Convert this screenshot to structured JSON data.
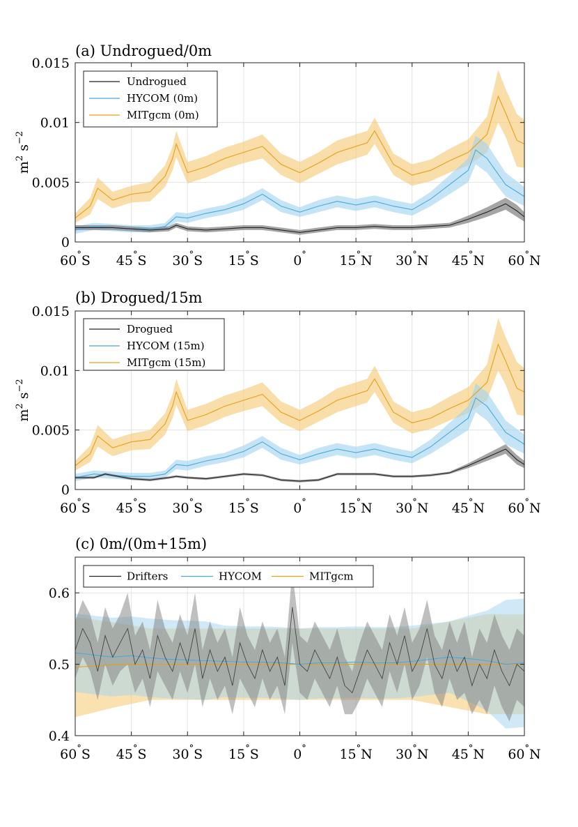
{
  "colors": {
    "drifter": "#222222",
    "hycom": "#4aa8db",
    "mitgcm": "#e69f18",
    "drifter_band": "#7f7f7f",
    "hycom_band": "#9fd3f2",
    "mitgcm_band": "#f5c870"
  },
  "chart_data": [
    {
      "type": "line",
      "panel": "a",
      "title": "(a) Undrogued/0m",
      "xlabel": "",
      "ylabel_base": "m",
      "ylabel_sup1": "2",
      "ylabel_s": " s",
      "ylabel_sup2": "−2",
      "xlim": [
        -60,
        60
      ],
      "ylim": [
        0,
        0.015
      ],
      "yticks": [
        0,
        0.005,
        0.01,
        0.015
      ],
      "ytick_labels": [
        "0",
        "0.005",
        "0.01",
        "0.015"
      ],
      "grid": true,
      "legend_position": "top-left",
      "legend_layout": "vertical",
      "series": [
        {
          "name": "Undrogued",
          "key": "drifter",
          "x": [
            -60,
            -55,
            -50,
            -45,
            -40,
            -35,
            -33,
            -30,
            -25,
            -20,
            -15,
            -10,
            -5,
            0,
            5,
            10,
            15,
            20,
            25,
            30,
            35,
            40,
            45,
            50,
            55,
            58,
            60
          ],
          "values": [
            0.0012,
            0.0012,
            0.0012,
            0.0011,
            0.001,
            0.0011,
            0.0014,
            0.0011,
            0.001,
            0.0011,
            0.0012,
            0.0012,
            0.001,
            0.0008,
            0.001,
            0.0012,
            0.0012,
            0.0013,
            0.0012,
            0.0012,
            0.0013,
            0.0014,
            0.0019,
            0.0025,
            0.0032,
            0.0026,
            0.0021
          ],
          "band": [
            0.0002,
            0.0002,
            0.0002,
            0.0002,
            0.0002,
            0.0002,
            0.0002,
            0.0002,
            0.0002,
            0.0002,
            0.0002,
            0.0002,
            0.0002,
            0.0002,
            0.0002,
            0.0002,
            0.0002,
            0.0002,
            0.0002,
            0.0002,
            0.0002,
            0.0002,
            0.0003,
            0.0004,
            0.0005,
            0.0005,
            0.0004
          ]
        },
        {
          "name": "HYCOM (0m)",
          "key": "hycom",
          "x": [
            -60,
            -55,
            -50,
            -45,
            -40,
            -36,
            -33,
            -30,
            -25,
            -20,
            -15,
            -10,
            -5,
            0,
            5,
            10,
            15,
            20,
            25,
            30,
            35,
            40,
            45,
            47,
            50,
            55,
            60
          ],
          "values": [
            0.001,
            0.0013,
            0.0012,
            0.0011,
            0.0011,
            0.0013,
            0.0021,
            0.002,
            0.0024,
            0.0027,
            0.0032,
            0.004,
            0.003,
            0.0025,
            0.003,
            0.0034,
            0.0031,
            0.0034,
            0.003,
            0.0027,
            0.0036,
            0.0048,
            0.006,
            0.0077,
            0.007,
            0.0048,
            0.0038
          ],
          "band": [
            0.0003,
            0.0003,
            0.0003,
            0.0003,
            0.0003,
            0.0003,
            0.0004,
            0.0004,
            0.0004,
            0.0004,
            0.0005,
            0.0005,
            0.0005,
            0.0004,
            0.0005,
            0.0005,
            0.0005,
            0.0005,
            0.0005,
            0.0005,
            0.0006,
            0.0008,
            0.001,
            0.0012,
            0.0012,
            0.001,
            0.0008
          ]
        },
        {
          "name": "MITgcm (0m)",
          "key": "mitgcm",
          "x": [
            -60,
            -56,
            -54,
            -50,
            -45,
            -40,
            -36,
            -34,
            -33,
            -30,
            -25,
            -20,
            -15,
            -10,
            -5,
            0,
            5,
            10,
            15,
            18,
            20,
            25,
            30,
            35,
            40,
            45,
            50,
            53,
            55,
            58,
            60
          ],
          "values": [
            0.002,
            0.003,
            0.0045,
            0.0035,
            0.004,
            0.0042,
            0.0055,
            0.007,
            0.0082,
            0.0058,
            0.0063,
            0.007,
            0.0075,
            0.008,
            0.0065,
            0.0058,
            0.0066,
            0.0075,
            0.008,
            0.0083,
            0.0093,
            0.0065,
            0.0056,
            0.006,
            0.0068,
            0.0075,
            0.009,
            0.0122,
            0.0108,
            0.0085,
            0.0082
          ],
          "band": [
            0.0004,
            0.0007,
            0.0009,
            0.0007,
            0.0007,
            0.0008,
            0.0009,
            0.001,
            0.0011,
            0.0009,
            0.0009,
            0.0009,
            0.0009,
            0.001,
            0.0009,
            0.0009,
            0.0009,
            0.001,
            0.001,
            0.001,
            0.0011,
            0.0009,
            0.0009,
            0.0009,
            0.001,
            0.0011,
            0.0015,
            0.0022,
            0.002,
            0.0022,
            0.002
          ]
        }
      ]
    },
    {
      "type": "line",
      "panel": "b",
      "title": "(b) Drogued/15m",
      "xlabel": "",
      "ylabel_base": "m",
      "ylabel_sup1": "2",
      "ylabel_s": " s",
      "ylabel_sup2": "−2",
      "xlim": [
        -60,
        60
      ],
      "ylim": [
        0,
        0.015
      ],
      "yticks": [
        0,
        0.005,
        0.01,
        0.015
      ],
      "ytick_labels": [
        "0",
        "0.005",
        "0.01",
        "0.015"
      ],
      "grid": true,
      "legend_position": "top-left",
      "legend_layout": "vertical",
      "series": [
        {
          "name": "Drogued",
          "key": "drifter",
          "x": [
            -60,
            -55,
            -52,
            -45,
            -40,
            -35,
            -33,
            -30,
            -25,
            -20,
            -15,
            -10,
            -5,
            0,
            5,
            10,
            15,
            20,
            25,
            30,
            35,
            40,
            45,
            50,
            55,
            58,
            60
          ],
          "values": [
            0.001,
            0.001,
            0.0013,
            0.0009,
            0.0008,
            0.001,
            0.0011,
            0.001,
            0.0009,
            0.0011,
            0.0013,
            0.0012,
            0.0008,
            0.0007,
            0.0008,
            0.0013,
            0.0013,
            0.0013,
            0.0011,
            0.0011,
            0.0012,
            0.0014,
            0.002,
            0.0027,
            0.0034,
            0.0025,
            0.0021
          ],
          "band": [
            0.0001,
            0.0001,
            0.0001,
            0.0001,
            0.0001,
            0.0001,
            0.0001,
            0.0001,
            0.0001,
            0.0001,
            0.0001,
            0.0001,
            0.0001,
            0.0001,
            0.0001,
            0.0001,
            0.0001,
            0.0001,
            0.0001,
            0.0001,
            0.0001,
            0.0001,
            0.0002,
            0.0003,
            0.0004,
            0.0004,
            0.0003
          ]
        },
        {
          "name": "HYCOM (15m)",
          "key": "hycom",
          "x": [
            -60,
            -55,
            -50,
            -45,
            -40,
            -36,
            -33,
            -30,
            -25,
            -20,
            -15,
            -10,
            -5,
            0,
            5,
            10,
            15,
            20,
            25,
            30,
            35,
            40,
            45,
            47,
            50,
            55,
            60
          ],
          "values": [
            0.001,
            0.0013,
            0.0012,
            0.0011,
            0.0011,
            0.0013,
            0.0021,
            0.002,
            0.0024,
            0.0027,
            0.0032,
            0.004,
            0.003,
            0.0025,
            0.003,
            0.0034,
            0.0031,
            0.0034,
            0.003,
            0.0027,
            0.0036,
            0.0048,
            0.006,
            0.0077,
            0.007,
            0.0048,
            0.0038
          ],
          "band": [
            0.0003,
            0.0003,
            0.0003,
            0.0003,
            0.0003,
            0.0003,
            0.0004,
            0.0004,
            0.0004,
            0.0004,
            0.0005,
            0.0005,
            0.0005,
            0.0004,
            0.0005,
            0.0005,
            0.0005,
            0.0005,
            0.0005,
            0.0005,
            0.0006,
            0.0008,
            0.001,
            0.0012,
            0.0012,
            0.001,
            0.0008
          ]
        },
        {
          "name": "MITgcm (15m)",
          "key": "mitgcm",
          "x": [
            -60,
            -56,
            -54,
            -50,
            -45,
            -40,
            -36,
            -34,
            -33,
            -30,
            -25,
            -20,
            -15,
            -10,
            -5,
            0,
            5,
            10,
            15,
            18,
            20,
            25,
            30,
            35,
            40,
            45,
            50,
            53,
            55,
            58,
            60
          ],
          "values": [
            0.002,
            0.003,
            0.0045,
            0.0035,
            0.004,
            0.0042,
            0.0055,
            0.007,
            0.0082,
            0.0058,
            0.0063,
            0.007,
            0.0075,
            0.008,
            0.0065,
            0.0058,
            0.0066,
            0.0075,
            0.008,
            0.0083,
            0.0093,
            0.0065,
            0.0056,
            0.006,
            0.0068,
            0.0075,
            0.009,
            0.0122,
            0.0108,
            0.0085,
            0.0082
          ],
          "band": [
            0.0004,
            0.0007,
            0.0009,
            0.0007,
            0.0007,
            0.0008,
            0.0009,
            0.001,
            0.0011,
            0.0009,
            0.0009,
            0.0009,
            0.0009,
            0.001,
            0.0009,
            0.0009,
            0.0009,
            0.001,
            0.001,
            0.001,
            0.0011,
            0.0009,
            0.0009,
            0.0009,
            0.001,
            0.0011,
            0.0015,
            0.0022,
            0.002,
            0.0022,
            0.002
          ]
        }
      ]
    },
    {
      "type": "line",
      "panel": "c",
      "title": "(c) 0m/(0m+15m)",
      "xlabel": "",
      "ylabel_base": "",
      "ylabel_sup1": "",
      "ylabel_s": "",
      "ylabel_sup2": "",
      "xlim": [
        -60,
        60
      ],
      "ylim": [
        0.4,
        0.65
      ],
      "yticks": [
        0.4,
        0.5,
        0.6
      ],
      "ytick_labels": [
        "0.4",
        "0.5",
        "0.6"
      ],
      "grid": true,
      "legend_position": "top-left",
      "legend_layout": "horizontal",
      "series": [
        {
          "name": "Drifters",
          "key": "drifter",
          "x": [
            -60,
            -58,
            -56,
            -54,
            -52,
            -50,
            -48,
            -46,
            -44,
            -42,
            -40,
            -38,
            -36,
            -34,
            -32,
            -30,
            -28,
            -26,
            -24,
            -22,
            -20,
            -18,
            -16,
            -14,
            -12,
            -10,
            -8,
            -6,
            -4,
            -2,
            0,
            2,
            4,
            6,
            8,
            10,
            12,
            14,
            16,
            18,
            20,
            22,
            24,
            26,
            28,
            30,
            32,
            34,
            36,
            38,
            40,
            42,
            44,
            46,
            48,
            50,
            52,
            54,
            56,
            58,
            60
          ],
          "values": [
            0.52,
            0.55,
            0.53,
            0.49,
            0.54,
            0.51,
            0.53,
            0.55,
            0.5,
            0.52,
            0.48,
            0.54,
            0.51,
            0.49,
            0.53,
            0.5,
            0.55,
            0.48,
            0.52,
            0.49,
            0.51,
            0.47,
            0.53,
            0.5,
            0.48,
            0.52,
            0.49,
            0.51,
            0.47,
            0.58,
            0.5,
            0.49,
            0.52,
            0.5,
            0.48,
            0.51,
            0.47,
            0.46,
            0.49,
            0.52,
            0.5,
            0.48,
            0.53,
            0.5,
            0.54,
            0.49,
            0.51,
            0.55,
            0.5,
            0.48,
            0.52,
            0.49,
            0.51,
            0.47,
            0.5,
            0.48,
            0.52,
            0.49,
            0.47,
            0.5,
            0.49
          ],
          "band": [
            0.04,
            0.04,
            0.04,
            0.04,
            0.04,
            0.04,
            0.04,
            0.05,
            0.04,
            0.04,
            0.04,
            0.05,
            0.04,
            0.04,
            0.04,
            0.04,
            0.05,
            0.04,
            0.04,
            0.04,
            0.04,
            0.04,
            0.05,
            0.04,
            0.04,
            0.04,
            0.04,
            0.04,
            0.04,
            0.05,
            0.04,
            0.04,
            0.04,
            0.04,
            0.04,
            0.04,
            0.04,
            0.03,
            0.04,
            0.04,
            0.04,
            0.04,
            0.04,
            0.04,
            0.04,
            0.04,
            0.04,
            0.04,
            0.04,
            0.04,
            0.04,
            0.04,
            0.05,
            0.04,
            0.05,
            0.05,
            0.05,
            0.05,
            0.05,
            0.05,
            0.05
          ]
        },
        {
          "name": "HYCOM",
          "key": "hycom",
          "x": [
            -60,
            -55,
            -50,
            -45,
            -40,
            -35,
            -30,
            -25,
            -20,
            -15,
            -10,
            -5,
            0,
            5,
            10,
            15,
            20,
            25,
            30,
            35,
            40,
            45,
            50,
            55,
            60
          ],
          "values": [
            0.516,
            0.513,
            0.51,
            0.512,
            0.509,
            0.507,
            0.506,
            0.505,
            0.504,
            0.503,
            0.503,
            0.502,
            0.5,
            0.502,
            0.502,
            0.503,
            0.502,
            0.502,
            0.504,
            0.507,
            0.51,
            0.508,
            0.505,
            0.5,
            0.502
          ],
          "band": [
            0.055,
            0.055,
            0.055,
            0.055,
            0.055,
            0.055,
            0.055,
            0.055,
            0.05,
            0.05,
            0.05,
            0.05,
            0.05,
            0.05,
            0.05,
            0.05,
            0.05,
            0.05,
            0.05,
            0.05,
            0.05,
            0.06,
            0.07,
            0.09,
            0.09
          ]
        },
        {
          "name": "MITgcm",
          "key": "mitgcm",
          "x": [
            -60,
            -50,
            -40,
            -30,
            -20,
            -10,
            0,
            10,
            20,
            30,
            40,
            50,
            60
          ],
          "values": [
            0.496,
            0.499,
            0.5,
            0.5,
            0.5,
            0.5,
            0.5,
            0.5,
            0.5,
            0.5,
            0.5,
            0.5,
            0.5
          ],
          "band": [
            0.07,
            0.06,
            0.05,
            0.05,
            0.05,
            0.05,
            0.05,
            0.05,
            0.05,
            0.05,
            0.06,
            0.07,
            0.07
          ]
        }
      ]
    }
  ],
  "xaxis": {
    "values": [
      -60,
      -45,
      -30,
      -15,
      0,
      15,
      30,
      45,
      60
    ],
    "numbers": [
      "60",
      "45",
      "30",
      "15",
      "0",
      "15",
      "30",
      "45",
      "60"
    ],
    "degree": "°",
    "hemis": [
      "S",
      "S",
      "S",
      "S",
      "",
      "N",
      "N",
      "N",
      "N"
    ]
  }
}
